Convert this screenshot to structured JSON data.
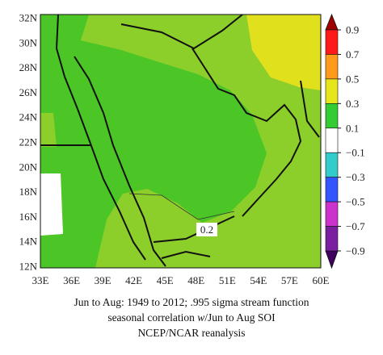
{
  "map": {
    "lat_labels": [
      "32N",
      "30N",
      "28N",
      "26N",
      "24N",
      "22N",
      "20N",
      "18N",
      "16N",
      "14N",
      "12N"
    ],
    "lon_labels": [
      "33E",
      "36E",
      "39E",
      "42E",
      "45E",
      "48E",
      "51E",
      "54E",
      "57E",
      "60E"
    ],
    "colorbar_labels": [
      "0.9",
      "0.7",
      "0.5",
      "0.3",
      "0.1",
      "−0.1",
      "−0.3",
      "−0.5",
      "−0.7",
      "−0.9"
    ],
    "contour_label": "0.2"
  },
  "caption": {
    "line1": "Jun to Aug: 1949 to 2012; .995 sigma stream function",
    "line2_pre": "seasonal correlation ",
    "line2_italic": "w",
    "line2_post": "/Jun to Aug SOI",
    "line3": "NCEP/NCAR reanalysis"
  }
}
